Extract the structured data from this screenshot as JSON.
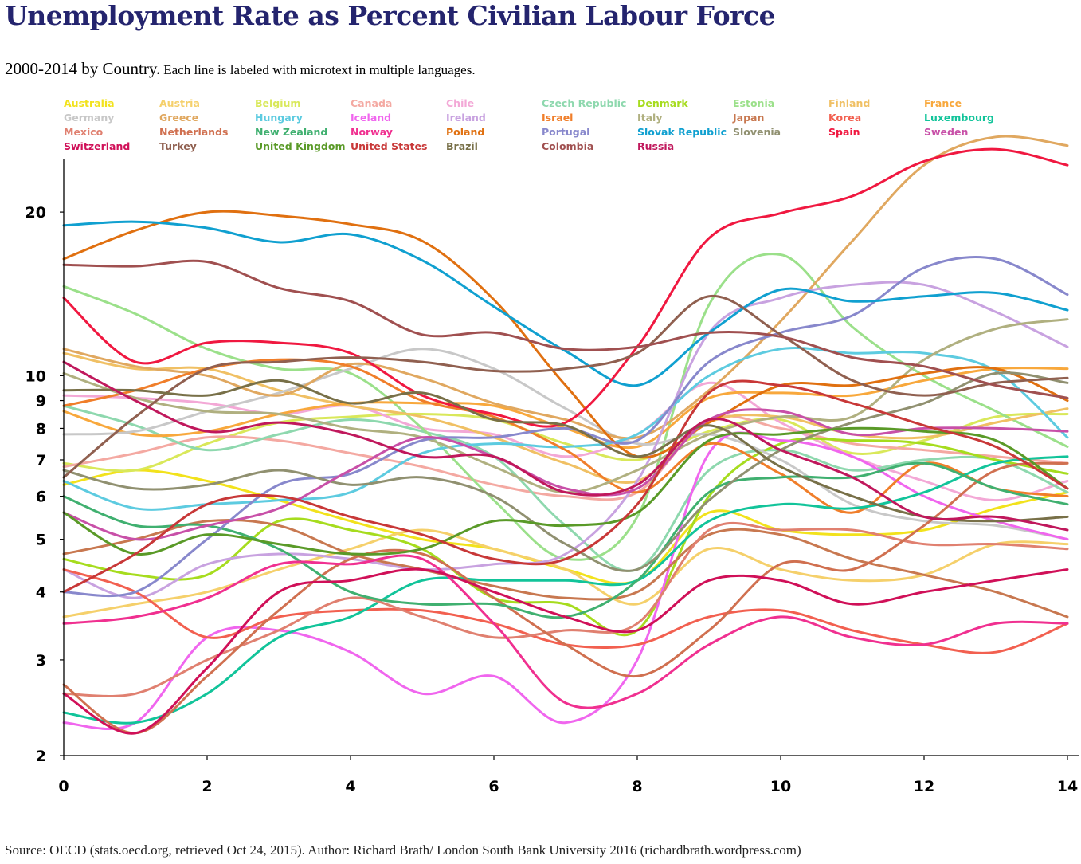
{
  "page": {
    "title": "Unemployment Rate as Percent Civilian Labour Force",
    "subtitle_main": "2000-2014 by Country.",
    "subtitle_note": "Each line is labeled with microtext in multiple languages.",
    "source": "Source: OECD (stats.oecd.org, retrieved Oct 24, 2015). Author: Richard Brath/ London South Bank University 2016 (richardbrath.wordpress.com)"
  },
  "chart_data": {
    "type": "line",
    "title": "Unemployment Rate as Percent Civilian Labour Force",
    "xlabel": "",
    "ylabel": "",
    "xlim": [
      0,
      14
    ],
    "ylim": [
      2,
      25
    ],
    "yscale": "log",
    "grid": false,
    "legend_position": "top",
    "x_ticks": [
      0,
      2,
      4,
      6,
      8,
      10,
      12,
      14
    ],
    "y_ticks": [
      {
        "value": 2,
        "label": "2"
      },
      {
        "value": 3,
        "label": "3"
      },
      {
        "value": 4,
        "label": "4"
      },
      {
        "value": 5,
        "label": "5"
      },
      {
        "value": 6,
        "label": "6"
      },
      {
        "value": 7,
        "label": "7"
      },
      {
        "value": 8,
        "label": "8"
      },
      {
        "value": 9,
        "label": "9"
      },
      {
        "value": 10,
        "label": "10"
      },
      {
        "value": 20,
        "label": "20"
      }
    ],
    "x": [
      0,
      1,
      2,
      3,
      4,
      5,
      6,
      7,
      8,
      9,
      10,
      11,
      12,
      13,
      14
    ],
    "series": [
      {
        "name": "Australia",
        "color": "#f2e21c",
        "values": [
          6.3,
          6.7,
          6.4,
          5.9,
          5.4,
          5.0,
          4.8,
          4.4,
          4.2,
          5.6,
          5.2,
          5.1,
          5.2,
          5.7,
          6.1
        ]
      },
      {
        "name": "Austria",
        "color": "#f5d06b",
        "values": [
          3.6,
          3.8,
          4.0,
          4.4,
          4.8,
          5.2,
          4.8,
          4.4,
          3.8,
          4.8,
          4.4,
          4.2,
          4.3,
          4.9,
          4.9
        ]
      },
      {
        "name": "Belgium",
        "color": "#d9e85a",
        "values": [
          6.9,
          6.7,
          7.5,
          8.2,
          8.4,
          8.5,
          8.3,
          7.5,
          7.0,
          7.9,
          8.3,
          7.2,
          7.6,
          8.4,
          8.5
        ]
      },
      {
        "name": "Canada",
        "color": "#f4a9a2",
        "values": [
          6.8,
          7.2,
          7.7,
          7.6,
          7.2,
          6.8,
          6.3,
          6.0,
          6.1,
          8.3,
          8.0,
          7.5,
          7.3,
          7.1,
          6.9
        ]
      },
      {
        "name": "Chile",
        "color": "#f3a8d6",
        "values": [
          9.2,
          9.1,
          8.9,
          8.5,
          8.8,
          8.0,
          7.8,
          7.1,
          7.8,
          9.7,
          8.2,
          7.1,
          6.4,
          5.9,
          6.4
        ]
      },
      {
        "name": "Czech Republic",
        "color": "#8ed8ae",
        "values": [
          8.8,
          8.1,
          7.3,
          7.8,
          8.3,
          7.9,
          7.1,
          5.3,
          4.4,
          6.7,
          7.3,
          6.7,
          7.0,
          7.0,
          6.1
        ]
      },
      {
        "name": "Denmark",
        "color": "#a6dc1e",
        "values": [
          4.6,
          4.3,
          4.3,
          5.4,
          5.2,
          4.8,
          3.9,
          3.8,
          3.4,
          6.0,
          7.5,
          7.6,
          7.5,
          7.0,
          6.6
        ]
      },
      {
        "name": "Estonia",
        "color": "#9be08a",
        "values": [
          14.6,
          13.0,
          11.2,
          10.3,
          10.1,
          8.0,
          5.9,
          4.6,
          5.5,
          13.5,
          16.7,
          12.3,
          10.0,
          8.6,
          7.4
        ]
      },
      {
        "name": "Finland",
        "color": "#f0c064",
        "values": [
          11.0,
          10.3,
          10.3,
          9.4,
          8.8,
          8.4,
          7.7,
          6.9,
          6.4,
          8.2,
          8.4,
          7.8,
          7.7,
          8.2,
          8.7
        ]
      },
      {
        "name": "France",
        "color": "#f8a83c",
        "values": [
          8.6,
          7.8,
          7.9,
          8.5,
          8.9,
          8.9,
          8.8,
          8.0,
          7.4,
          9.1,
          9.3,
          9.2,
          9.8,
          10.3,
          10.3
        ]
      },
      {
        "name": "Germany",
        "color": "#c8c8c8",
        "values": [
          7.8,
          7.9,
          8.6,
          9.3,
          10.3,
          11.2,
          10.3,
          8.7,
          7.5,
          7.8,
          7.0,
          5.8,
          5.4,
          5.3,
          5.0
        ]
      },
      {
        "name": "Greece",
        "color": "#e0a860",
        "values": [
          11.2,
          10.4,
          10.0,
          9.2,
          10.5,
          9.9,
          8.9,
          8.3,
          7.7,
          9.4,
          12.6,
          17.7,
          24.4,
          27.5,
          26.5
        ]
      },
      {
        "name": "Hungary",
        "color": "#5dcbe0",
        "values": [
          6.4,
          5.7,
          5.8,
          5.9,
          6.1,
          7.2,
          7.5,
          7.4,
          7.8,
          10.0,
          11.2,
          11.0,
          11.0,
          10.2,
          7.7
        ]
      },
      {
        "name": "Iceland",
        "color": "#f066ee",
        "values": [
          2.3,
          2.3,
          3.3,
          3.4,
          3.1,
          2.6,
          2.8,
          2.3,
          3.0,
          7.2,
          7.6,
          7.1,
          6.0,
          5.4,
          5.0
        ]
      },
      {
        "name": "Ireland",
        "color": "#c8a2e0",
        "values": [
          4.4,
          3.9,
          4.5,
          4.7,
          4.6,
          4.4,
          4.5,
          4.7,
          6.4,
          12.0,
          13.9,
          14.7,
          14.7,
          13.1,
          11.3
        ]
      },
      {
        "name": "Israel",
        "color": "#f07e2a",
        "values": [
          8.8,
          9.4,
          10.3,
          10.7,
          10.4,
          9.0,
          8.4,
          7.3,
          6.1,
          7.5,
          6.6,
          5.6,
          6.9,
          6.2,
          6.0
        ]
      },
      {
        "name": "Italy",
        "color": "#b0b080",
        "values": [
          10.1,
          9.1,
          8.6,
          8.5,
          8.0,
          7.7,
          6.8,
          6.1,
          6.7,
          7.8,
          8.4,
          8.4,
          10.7,
          12.2,
          12.7
        ]
      },
      {
        "name": "Japan",
        "color": "#c87850",
        "values": [
          4.7,
          5.0,
          5.4,
          5.3,
          4.7,
          4.4,
          4.1,
          3.9,
          4.0,
          5.1,
          5.1,
          4.6,
          4.3,
          4.0,
          3.6
        ]
      },
      {
        "name": "Korea",
        "color": "#f26050",
        "values": [
          4.4,
          4.0,
          3.3,
          3.6,
          3.7,
          3.7,
          3.5,
          3.2,
          3.2,
          3.6,
          3.7,
          3.4,
          3.2,
          3.1,
          3.5
        ]
      },
      {
        "name": "Luxembourg",
        "color": "#12c49a",
        "values": [
          2.4,
          2.3,
          2.6,
          3.3,
          3.6,
          4.2,
          4.2,
          4.2,
          4.2,
          5.4,
          5.8,
          5.7,
          6.1,
          6.9,
          7.1
        ]
      },
      {
        "name": "Mexico",
        "color": "#e08070",
        "values": [
          2.6,
          2.6,
          3.0,
          3.4,
          3.9,
          3.6,
          3.3,
          3.4,
          3.5,
          5.2,
          5.2,
          5.2,
          4.9,
          4.9,
          4.8
        ]
      },
      {
        "name": "Netherlands",
        "color": "#d07050",
        "values": [
          2.7,
          2.2,
          2.8,
          3.7,
          4.6,
          4.7,
          3.9,
          3.2,
          2.8,
          3.4,
          4.5,
          4.4,
          5.3,
          6.7,
          6.9
        ]
      },
      {
        "name": "New Zealand",
        "color": "#40b070",
        "values": [
          6.0,
          5.3,
          5.3,
          4.8,
          4.0,
          3.8,
          3.8,
          3.6,
          4.2,
          6.1,
          6.5,
          6.5,
          6.9,
          6.2,
          5.8
        ]
      },
      {
        "name": "Norway",
        "color": "#f03090",
        "values": [
          3.5,
          3.6,
          3.9,
          4.5,
          4.5,
          4.6,
          3.5,
          2.5,
          2.6,
          3.2,
          3.6,
          3.3,
          3.2,
          3.5,
          3.5
        ]
      },
      {
        "name": "Poland",
        "color": "#e07010",
        "values": [
          16.4,
          18.5,
          20.0,
          19.7,
          19.0,
          17.7,
          13.8,
          9.6,
          7.1,
          8.2,
          9.6,
          9.6,
          10.1,
          10.3,
          9.0
        ]
      },
      {
        "name": "Portugal",
        "color": "#8888cc",
        "values": [
          4.0,
          4.0,
          5.0,
          6.3,
          6.6,
          7.6,
          7.7,
          8.0,
          7.6,
          10.6,
          12.0,
          12.9,
          15.8,
          16.4,
          14.1
        ]
      },
      {
        "name": "Slovak Republic",
        "color": "#10a0d0",
        "values": [
          18.9,
          19.2,
          18.7,
          17.6,
          18.2,
          16.3,
          13.4,
          11.1,
          9.6,
          12.0,
          14.4,
          13.7,
          14.0,
          14.2,
          13.2
        ]
      },
      {
        "name": "Slovenia",
        "color": "#909070",
        "values": [
          6.7,
          6.2,
          6.3,
          6.7,
          6.3,
          6.5,
          6.0,
          4.9,
          4.4,
          5.9,
          7.3,
          8.2,
          8.9,
          10.1,
          9.7
        ]
      },
      {
        "name": "Spain",
        "color": "#f01840",
        "values": [
          13.9,
          10.6,
          11.5,
          11.5,
          11.0,
          9.2,
          8.5,
          8.2,
          11.3,
          17.9,
          19.9,
          21.4,
          24.8,
          26.1,
          24.4
        ]
      },
      {
        "name": "Sweden",
        "color": "#c850a8",
        "values": [
          5.6,
          5.0,
          5.3,
          5.7,
          6.7,
          7.7,
          7.1,
          6.2,
          6.2,
          8.3,
          8.6,
          7.8,
          8.0,
          8.0,
          7.9
        ]
      },
      {
        "name": "Switzerland",
        "color": "#d01058",
        "values": [
          2.6,
          2.2,
          2.9,
          4.0,
          4.2,
          4.4,
          4.0,
          3.6,
          3.4,
          4.2,
          4.2,
          3.8,
          4.0,
          4.2,
          4.4
        ]
      },
      {
        "name": "Turkey",
        "color": "#906050",
        "values": [
          6.5,
          8.4,
          10.3,
          10.6,
          10.8,
          10.6,
          10.2,
          10.3,
          11.0,
          14.0,
          11.9,
          9.8,
          9.2,
          9.7,
          9.9
        ]
      },
      {
        "name": "United Kingdom",
        "color": "#5a9a28",
        "values": [
          5.6,
          4.7,
          5.1,
          4.9,
          4.7,
          4.8,
          5.4,
          5.3,
          5.6,
          7.6,
          7.8,
          8.0,
          7.9,
          7.6,
          6.2
        ]
      },
      {
        "name": "United States",
        "color": "#c83838",
        "values": [
          4.0,
          4.7,
          5.8,
          6.0,
          5.5,
          5.1,
          4.6,
          4.6,
          5.8,
          9.3,
          9.6,
          8.9,
          8.1,
          7.4,
          6.2
        ]
      },
      {
        "name": "Brazil",
        "color": "#787048",
        "values": [
          9.4,
          9.4,
          9.2,
          9.8,
          8.9,
          9.3,
          8.3,
          8.1,
          7.1,
          8.1,
          6.8,
          6.0,
          5.5,
          5.4,
          5.5
        ]
      },
      {
        "name": "Colombia",
        "color": "#a05050",
        "values": [
          16.0,
          15.9,
          16.2,
          14.5,
          13.7,
          11.9,
          12.0,
          11.2,
          11.3,
          12.0,
          11.8,
          10.8,
          10.4,
          9.6,
          9.1
        ]
      },
      {
        "name": "Russia",
        "color": "#c0185c",
        "values": [
          10.6,
          9.0,
          7.9,
          8.2,
          7.8,
          7.1,
          7.1,
          6.1,
          6.3,
          8.3,
          7.3,
          6.5,
          5.5,
          5.5,
          5.2
        ]
      }
    ]
  }
}
